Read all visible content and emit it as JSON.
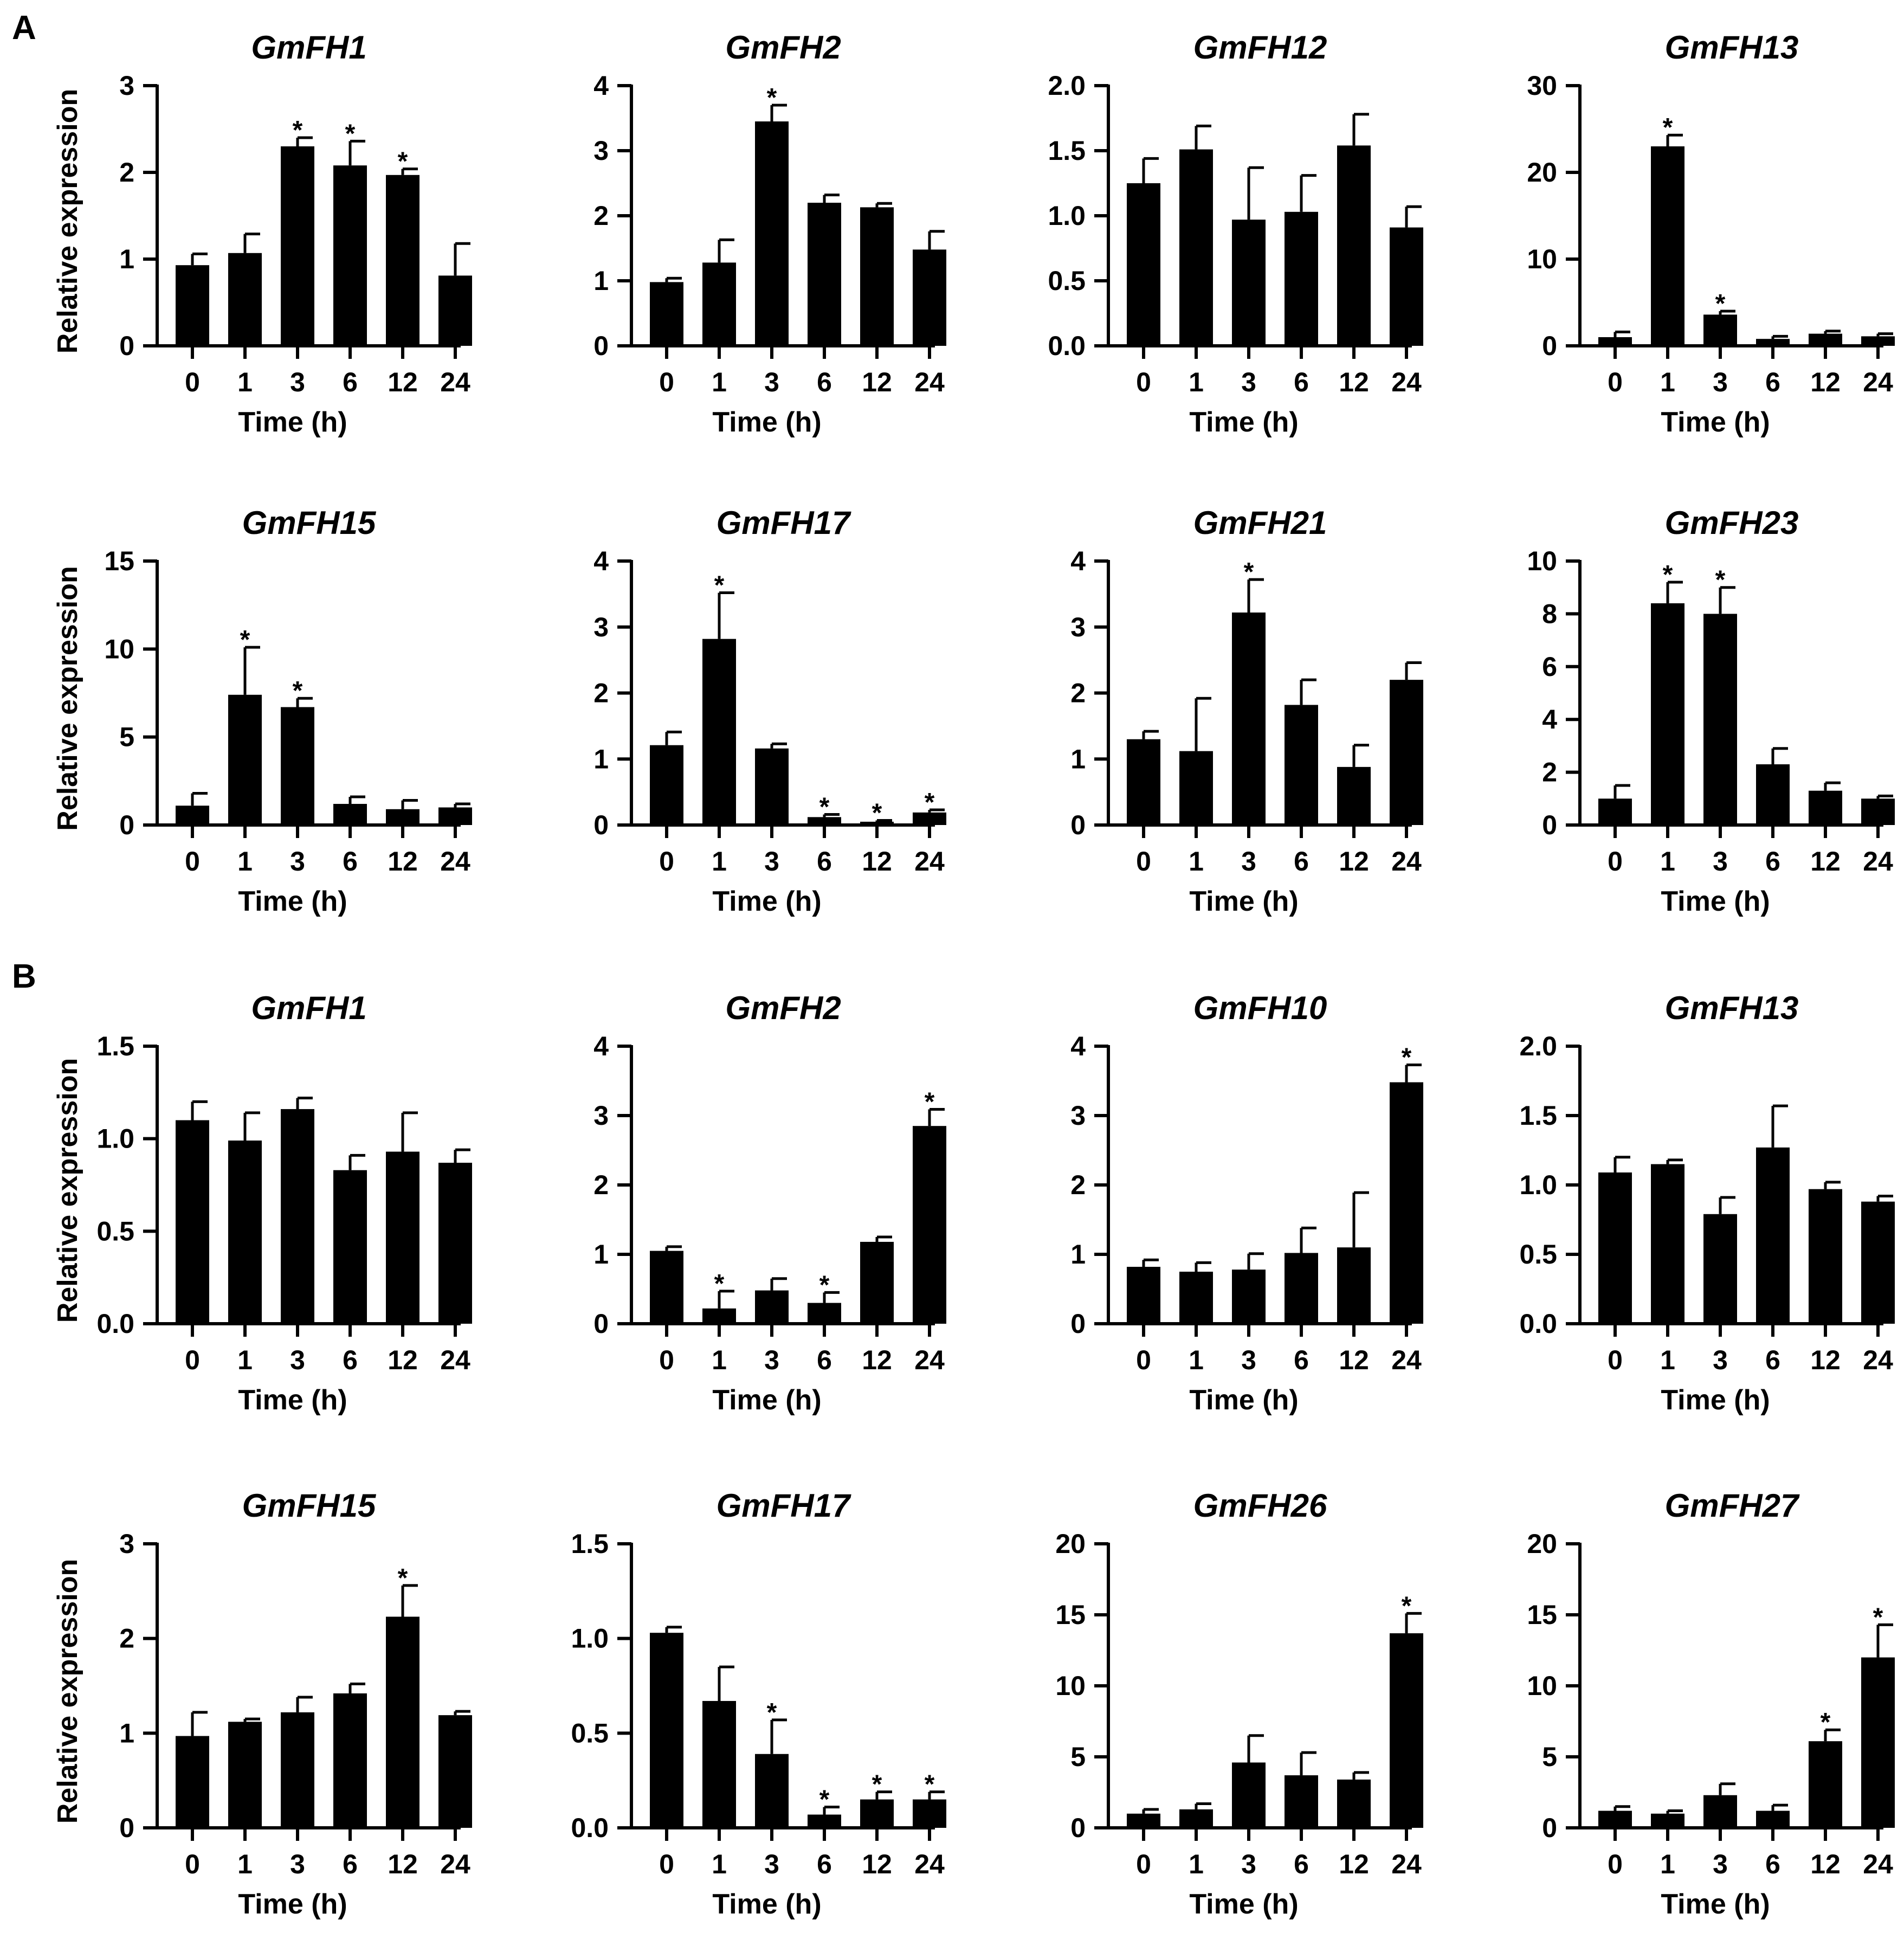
{
  "panels": [
    {
      "label": "A"
    },
    {
      "label": "B"
    }
  ],
  "chart_data": [
    {
      "type": "bar",
      "panel": "A",
      "title": "GmFH1",
      "xlabel": "Time (h)",
      "ylabel": "Relative expression",
      "categories": [
        "0",
        "1",
        "3",
        "6",
        "12",
        "24"
      ],
      "values": [
        0.93,
        1.07,
        2.3,
        2.08,
        1.97,
        0.81
      ],
      "errors": [
        0.13,
        0.22,
        0.1,
        0.28,
        0.07,
        0.37
      ],
      "significant": [
        false,
        false,
        true,
        true,
        true,
        false
      ],
      "ylim": [
        0,
        3
      ],
      "yticks": [
        0,
        1,
        2,
        3
      ],
      "yticklabels": [
        "0",
        "1",
        "2",
        "3"
      ]
    },
    {
      "type": "bar",
      "panel": "A",
      "title": "GmFH2",
      "xlabel": "Time (h)",
      "ylabel": "",
      "categories": [
        "0",
        "1",
        "3",
        "6",
        "12",
        "24"
      ],
      "values": [
        0.98,
        1.28,
        3.45,
        2.2,
        2.13,
        1.48
      ],
      "errors": [
        0.06,
        0.35,
        0.25,
        0.12,
        0.06,
        0.28
      ],
      "significant": [
        false,
        false,
        true,
        false,
        false,
        false
      ],
      "ylim": [
        0,
        4
      ],
      "yticks": [
        0,
        1,
        2,
        3,
        4
      ],
      "yticklabels": [
        "0",
        "1",
        "2",
        "3",
        "4"
      ]
    },
    {
      "type": "bar",
      "panel": "A",
      "title": "GmFH12",
      "xlabel": "Time (h)",
      "ylabel": "",
      "categories": [
        "0",
        "1",
        "3",
        "6",
        "12",
        "24"
      ],
      "values": [
        1.25,
        1.51,
        0.97,
        1.03,
        1.54,
        0.91
      ],
      "errors": [
        0.19,
        0.18,
        0.4,
        0.28,
        0.24,
        0.16
      ],
      "significant": [
        false,
        false,
        false,
        false,
        false,
        false
      ],
      "ylim": [
        0,
        2.0
      ],
      "yticks": [
        0,
        0.5,
        1.0,
        1.5,
        2.0
      ],
      "yticklabels": [
        "0.0",
        "0.5",
        "1.0",
        "1.5",
        "2.0"
      ]
    },
    {
      "type": "bar",
      "panel": "A",
      "title": "GmFH13",
      "xlabel": "Time (h)",
      "ylabel": "",
      "categories": [
        "0",
        "1",
        "3",
        "6",
        "12",
        "24"
      ],
      "values": [
        1.0,
        23.0,
        3.6,
        0.8,
        1.4,
        1.1
      ],
      "errors": [
        0.6,
        1.3,
        0.4,
        0.3,
        0.3,
        0.3
      ],
      "significant": [
        false,
        true,
        true,
        false,
        false,
        false
      ],
      "ylim": [
        0,
        30
      ],
      "yticks": [
        0,
        10,
        20,
        30
      ],
      "yticklabels": [
        "0",
        "10",
        "20",
        "30"
      ]
    },
    {
      "type": "bar",
      "panel": "A",
      "title": "GmFH15",
      "xlabel": "Time (h)",
      "ylabel": "Relative expression",
      "categories": [
        "0",
        "1",
        "3",
        "6",
        "12",
        "24"
      ],
      "values": [
        1.1,
        7.4,
        6.7,
        1.2,
        0.9,
        1.0
      ],
      "errors": [
        0.7,
        2.7,
        0.5,
        0.4,
        0.5,
        0.2
      ],
      "significant": [
        false,
        true,
        true,
        false,
        false,
        false
      ],
      "ylim": [
        0,
        15
      ],
      "yticks": [
        0,
        5,
        10,
        15
      ],
      "yticklabels": [
        "0",
        "5",
        "10",
        "15"
      ]
    },
    {
      "type": "bar",
      "panel": "A",
      "title": "GmFH17",
      "xlabel": "Time (h)",
      "ylabel": "",
      "categories": [
        "0",
        "1",
        "3",
        "6",
        "12",
        "24"
      ],
      "values": [
        1.21,
        2.82,
        1.16,
        0.12,
        0.05,
        0.19
      ],
      "errors": [
        0.2,
        0.7,
        0.07,
        0.04,
        0.02,
        0.04
      ],
      "significant": [
        false,
        true,
        false,
        true,
        true,
        true
      ],
      "ylim": [
        0,
        4
      ],
      "yticks": [
        0,
        1,
        2,
        3,
        4
      ],
      "yticklabels": [
        "0",
        "1",
        "2",
        "3",
        "4"
      ]
    },
    {
      "type": "bar",
      "panel": "A",
      "title": "GmFH21",
      "xlabel": "Time (h)",
      "ylabel": "",
      "categories": [
        "0",
        "1",
        "3",
        "6",
        "12",
        "24"
      ],
      "values": [
        1.3,
        1.12,
        3.22,
        1.82,
        0.88,
        2.2
      ],
      "errors": [
        0.12,
        0.8,
        0.5,
        0.38,
        0.33,
        0.26
      ],
      "significant": [
        false,
        false,
        true,
        false,
        false,
        false
      ],
      "ylim": [
        0,
        4
      ],
      "yticks": [
        0,
        1,
        2,
        3,
        4
      ],
      "yticklabels": [
        "0",
        "1",
        "2",
        "3",
        "4"
      ]
    },
    {
      "type": "bar",
      "panel": "A",
      "title": "GmFH23",
      "xlabel": "Time (h)",
      "ylabel": "",
      "categories": [
        "0",
        "1",
        "3",
        "6",
        "12",
        "24"
      ],
      "values": [
        1.0,
        8.4,
        8.0,
        2.3,
        1.3,
        1.0
      ],
      "errors": [
        0.5,
        0.8,
        1.0,
        0.6,
        0.3,
        0.1
      ],
      "significant": [
        false,
        true,
        true,
        false,
        false,
        false
      ],
      "ylim": [
        0,
        10
      ],
      "yticks": [
        0,
        2,
        4,
        6,
        8,
        10
      ],
      "yticklabels": [
        "0",
        "2",
        "4",
        "6",
        "8",
        "10"
      ]
    },
    {
      "type": "bar",
      "panel": "B",
      "title": "GmFH1",
      "xlabel": "Time (h)",
      "ylabel": "Relative expression",
      "categories": [
        "0",
        "1",
        "3",
        "6",
        "12",
        "24"
      ],
      "values": [
        1.1,
        0.99,
        1.16,
        0.83,
        0.93,
        0.87
      ],
      "errors": [
        0.1,
        0.15,
        0.06,
        0.08,
        0.21,
        0.07
      ],
      "significant": [
        false,
        false,
        false,
        false,
        false,
        false
      ],
      "ylim": [
        0,
        1.5
      ],
      "yticks": [
        0,
        0.5,
        1.0,
        1.5
      ],
      "yticklabels": [
        "0.0",
        "0.5",
        "1.0",
        "1.5"
      ]
    },
    {
      "type": "bar",
      "panel": "B",
      "title": "GmFH2",
      "xlabel": "Time (h)",
      "ylabel": "",
      "categories": [
        "0",
        "1",
        "3",
        "6",
        "12",
        "24"
      ],
      "values": [
        1.05,
        0.22,
        0.48,
        0.3,
        1.18,
        2.85
      ],
      "errors": [
        0.06,
        0.25,
        0.17,
        0.15,
        0.07,
        0.24
      ],
      "significant": [
        false,
        true,
        false,
        true,
        false,
        true
      ],
      "ylim": [
        0,
        4
      ],
      "yticks": [
        0,
        1,
        2,
        3,
        4
      ],
      "yticklabels": [
        "0",
        "1",
        "2",
        "3",
        "4"
      ]
    },
    {
      "type": "bar",
      "panel": "B",
      "title": "GmFH10",
      "xlabel": "Time (h)",
      "ylabel": "",
      "categories": [
        "0",
        "1",
        "3",
        "6",
        "12",
        "24"
      ],
      "values": [
        0.82,
        0.75,
        0.78,
        1.02,
        1.1,
        3.48
      ],
      "errors": [
        0.1,
        0.13,
        0.23,
        0.36,
        0.79,
        0.25
      ],
      "significant": [
        false,
        false,
        false,
        false,
        false,
        true
      ],
      "ylim": [
        0,
        4
      ],
      "yticks": [
        0,
        1,
        2,
        3,
        4
      ],
      "yticklabels": [
        "0",
        "1",
        "2",
        "3",
        "4"
      ]
    },
    {
      "type": "bar",
      "panel": "B",
      "title": "GmFH13",
      "xlabel": "Time (h)",
      "ylabel": "",
      "categories": [
        "0",
        "1",
        "3",
        "6",
        "12",
        "24"
      ],
      "values": [
        1.09,
        1.15,
        0.79,
        1.27,
        0.97,
        0.88
      ],
      "errors": [
        0.11,
        0.03,
        0.12,
        0.3,
        0.05,
        0.04
      ],
      "significant": [
        false,
        false,
        false,
        false,
        false,
        false
      ],
      "ylim": [
        0,
        2.0
      ],
      "yticks": [
        0,
        0.5,
        1.0,
        1.5,
        2.0
      ],
      "yticklabels": [
        "0.0",
        "0.5",
        "1.0",
        "1.5",
        "2.0"
      ]
    },
    {
      "type": "bar",
      "panel": "B",
      "title": "GmFH15",
      "xlabel": "Time (h)",
      "ylabel": "Relative expression",
      "categories": [
        "0",
        "1",
        "3",
        "6",
        "12",
        "24"
      ],
      "values": [
        0.97,
        1.12,
        1.22,
        1.42,
        2.23,
        1.19
      ],
      "errors": [
        0.25,
        0.03,
        0.16,
        0.1,
        0.33,
        0.04
      ],
      "significant": [
        false,
        false,
        false,
        false,
        true,
        false
      ],
      "ylim": [
        0,
        3
      ],
      "yticks": [
        0,
        1,
        2,
        3
      ],
      "yticklabels": [
        "0",
        "1",
        "2",
        "3"
      ]
    },
    {
      "type": "bar",
      "panel": "B",
      "title": "GmFH17",
      "xlabel": "Time (h)",
      "ylabel": "",
      "categories": [
        "0",
        "1",
        "3",
        "6",
        "12",
        "24"
      ],
      "values": [
        1.03,
        0.67,
        0.39,
        0.07,
        0.15,
        0.15
      ],
      "errors": [
        0.03,
        0.18,
        0.18,
        0.04,
        0.04,
        0.04
      ],
      "significant": [
        false,
        false,
        true,
        true,
        true,
        true
      ],
      "ylim": [
        0,
        1.5
      ],
      "yticks": [
        0,
        0.5,
        1.0,
        1.5
      ],
      "yticklabels": [
        "0.0",
        "0.5",
        "1.0",
        "1.5"
      ]
    },
    {
      "type": "bar",
      "panel": "B",
      "title": "GmFH26",
      "xlabel": "Time (h)",
      "ylabel": "",
      "categories": [
        "0",
        "1",
        "3",
        "6",
        "12",
        "24"
      ],
      "values": [
        1.0,
        1.3,
        4.6,
        3.7,
        3.4,
        13.7
      ],
      "errors": [
        0.3,
        0.4,
        1.9,
        1.6,
        0.5,
        1.4
      ],
      "significant": [
        false,
        false,
        false,
        false,
        false,
        true
      ],
      "ylim": [
        0,
        20
      ],
      "yticks": [
        0,
        5,
        10,
        15,
        20
      ],
      "yticklabels": [
        "0",
        "5",
        "10",
        "15",
        "20"
      ]
    },
    {
      "type": "bar",
      "panel": "B",
      "title": "GmFH27",
      "xlabel": "Time (h)",
      "ylabel": "",
      "categories": [
        "0",
        "1",
        "3",
        "6",
        "12",
        "24"
      ],
      "values": [
        1.2,
        1.0,
        2.3,
        1.2,
        6.1,
        12.0
      ],
      "errors": [
        0.3,
        0.2,
        0.8,
        0.4,
        0.8,
        2.3
      ],
      "significant": [
        false,
        false,
        false,
        false,
        true,
        true
      ],
      "ylim": [
        0,
        20
      ],
      "yticks": [
        0,
        5,
        10,
        15,
        20
      ],
      "yticklabels": [
        "0",
        "5",
        "10",
        "15",
        "20"
      ]
    }
  ],
  "significance_marker": "*",
  "colors": {
    "bar": "#000000",
    "axis": "#000000",
    "background": "#ffffff"
  }
}
